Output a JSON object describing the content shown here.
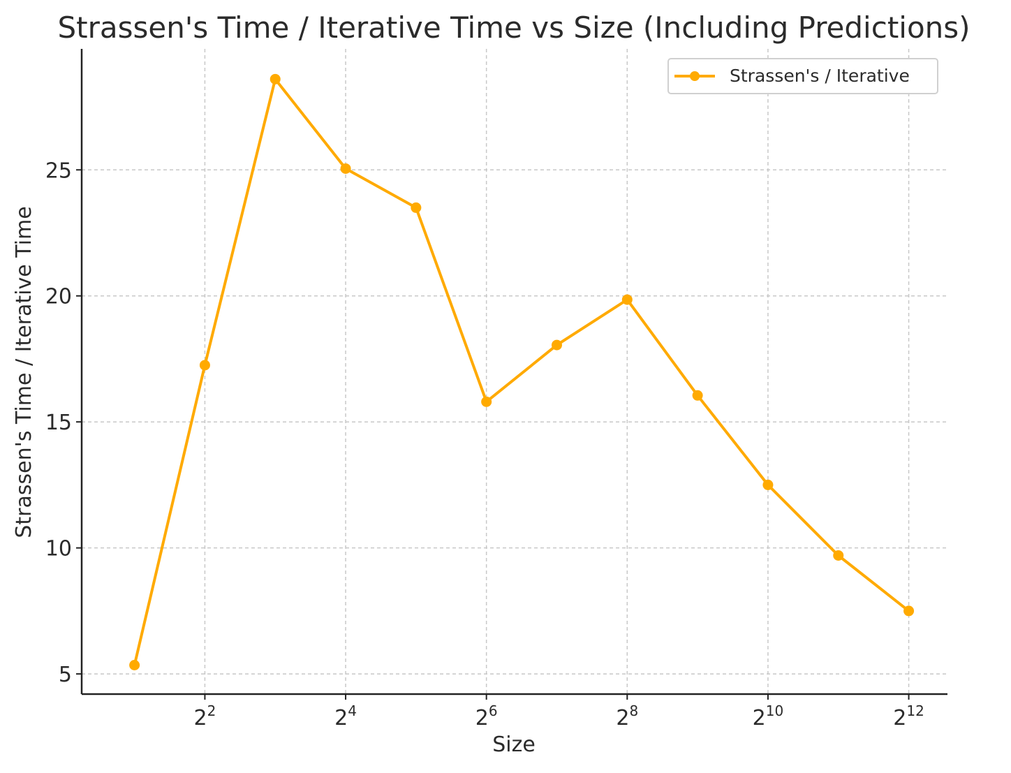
{
  "chart_data": {
    "type": "line",
    "title": "Strassen's Time / Iterative Time vs Size (Including Predictions)",
    "xlabel": "Size",
    "ylabel": "Strassen's Time / Iterative Time",
    "x_scale": "log2",
    "x": [
      2,
      4,
      8,
      16,
      32,
      64,
      128,
      256,
      512,
      1024,
      2048,
      4096
    ],
    "x_ticks": [
      4,
      16,
      64,
      256,
      1024,
      4096
    ],
    "x_tick_labels": [
      {
        "base": "2",
        "exp": "2"
      },
      {
        "base": "2",
        "exp": "4"
      },
      {
        "base": "2",
        "exp": "6"
      },
      {
        "base": "2",
        "exp": "8"
      },
      {
        "base": "2",
        "exp": "10"
      },
      {
        "base": "2",
        "exp": "12"
      }
    ],
    "y_ticks": [
      5,
      10,
      15,
      20,
      25
    ],
    "ylim": [
      4.2,
      29.8
    ],
    "xlim_log2": [
      0.25,
      12.55
    ],
    "grid": true,
    "grid_style": "dashed",
    "legend_position": "top-right",
    "series": [
      {
        "name": "Strassen's / Iterative",
        "color": "#FFAA00",
        "marker": "circle",
        "values": [
          5.35,
          17.25,
          28.6,
          25.05,
          23.5,
          15.8,
          18.05,
          19.85,
          16.05,
          12.5,
          9.7,
          7.5
        ]
      }
    ]
  }
}
